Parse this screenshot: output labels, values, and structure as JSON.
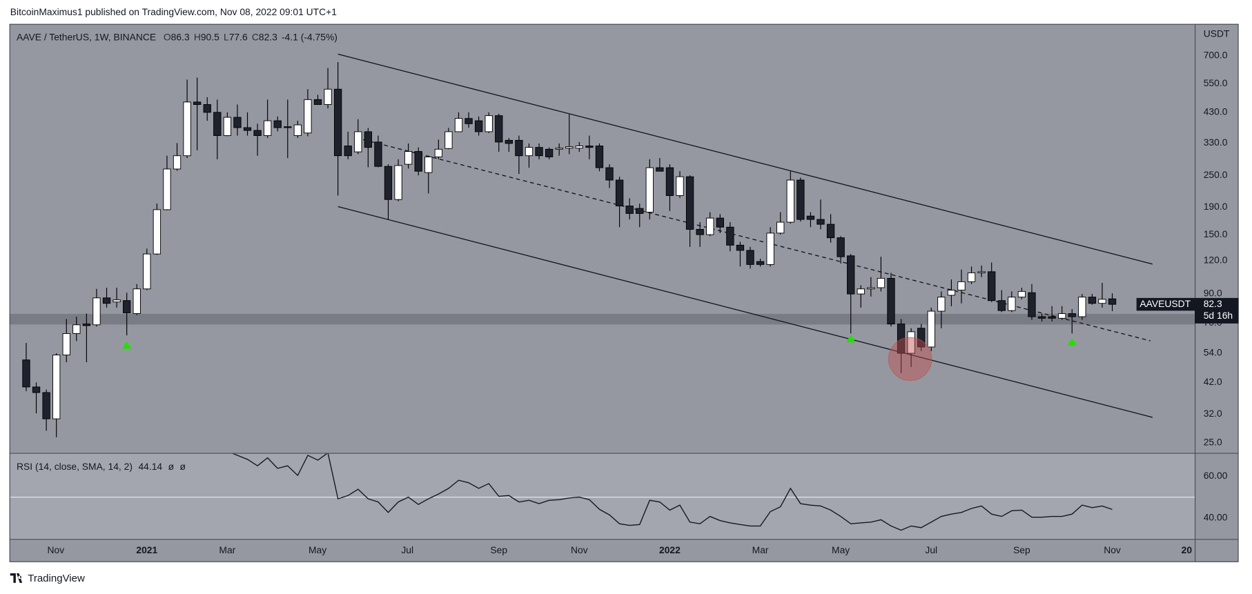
{
  "header": {
    "byline": "BitcoinMaximus1 published on TradingView.com, Nov 08, 2022 09:01 UTC+1"
  },
  "chart_data": {
    "type": "candlestick",
    "symbol_line": "AAVE / TetherUS, 1W, BINANCE",
    "ohlc_labels": [
      "O",
      "H",
      "L",
      "C"
    ],
    "change": "-4.1 (-4.75%)",
    "y_axis_label": "USDT",
    "y_scale": "log",
    "ylim": [
      22.9,
      921
    ],
    "yticks": [
      {
        "value": 700,
        "label": "700.0"
      },
      {
        "value": 550,
        "label": "550.0"
      },
      {
        "value": 430,
        "label": "430.0"
      },
      {
        "value": 330,
        "label": "330.0"
      },
      {
        "value": 250,
        "label": "250.0"
      },
      {
        "value": 190,
        "label": "190.0"
      },
      {
        "value": 150,
        "label": "150.0"
      },
      {
        "value": 120,
        "label": "120.0"
      },
      {
        "value": 90,
        "label": "90.0"
      },
      {
        "value": 70,
        "label": "70.0"
      },
      {
        "value": 54,
        "label": "54.0"
      },
      {
        "value": 42,
        "label": "42.0"
      },
      {
        "value": 32,
        "label": "32.0"
      },
      {
        "value": 25,
        "label": "25.0"
      }
    ],
    "xlim": [
      -1.67,
      116.2
    ],
    "xticks": [
      {
        "value": 2.94,
        "label": "Nov"
      },
      {
        "value": 12.0,
        "label": "2021"
      },
      {
        "value": 20.0,
        "label": "Mar"
      },
      {
        "value": 28.97,
        "label": "May"
      },
      {
        "value": 37.9,
        "label": "Jul"
      },
      {
        "value": 47.0,
        "label": "Sep"
      },
      {
        "value": 55.0,
        "label": "Nov"
      },
      {
        "value": 64.0,
        "label": "2022"
      },
      {
        "value": 73.0,
        "label": "Mar"
      },
      {
        "value": 81.0,
        "label": "May"
      },
      {
        "value": 90.0,
        "label": "Jul"
      },
      {
        "value": 99.0,
        "label": "Sep"
      },
      {
        "value": 108.0,
        "label": "Nov"
      },
      {
        "value": 115.4,
        "label": "20"
      }
    ],
    "up_color": "#ffffff",
    "down_color": "#1e222d",
    "candles": [
      [
        51,
        59,
        39,
        40.4
      ],
      [
        40.4,
        42,
        32.2,
        38.5
      ],
      [
        38.5,
        39.5,
        27.7,
        30.7
      ],
      [
        30.7,
        54,
        26.2,
        53.2
      ],
      [
        53.2,
        72.5,
        50,
        64
      ],
      [
        64,
        74,
        60,
        69
      ],
      [
        69.5,
        76,
        50,
        68.5
      ],
      [
        69,
        94,
        68,
        87
      ],
      [
        87,
        95,
        80,
        83
      ],
      [
        84,
        95,
        80,
        85.5
      ],
      [
        85,
        91,
        63,
        76.5
      ],
      [
        76,
        98,
        75,
        94
      ],
      [
        94,
        133,
        93,
        127
      ],
      [
        127,
        196,
        126,
        186
      ],
      [
        186,
        296,
        185,
        264
      ],
      [
        264,
        330,
        260,
        296
      ],
      [
        296,
        570,
        290,
        470
      ],
      [
        470,
        580,
        310,
        460
      ],
      [
        460,
        490,
        400,
        430
      ],
      [
        430,
        480,
        287,
        352
      ],
      [
        352,
        430,
        350,
        412
      ],
      [
        412,
        460,
        352,
        377
      ],
      [
        377,
        430,
        352,
        368
      ],
      [
        368,
        390,
        296,
        352
      ],
      [
        352,
        480,
        345,
        400
      ],
      [
        400,
        415,
        365,
        377
      ],
      [
        380,
        480,
        290,
        377
      ],
      [
        352,
        400,
        345,
        386
      ],
      [
        360,
        525,
        350,
        480
      ],
      [
        480,
        500,
        460,
        460
      ],
      [
        460,
        630,
        445,
        525
      ],
      [
        525,
        663,
        210,
        296
      ],
      [
        322,
        364,
        287,
        296
      ],
      [
        306,
        405,
        300,
        364
      ],
      [
        364,
        376,
        268,
        318
      ],
      [
        333,
        352,
        268,
        270
      ],
      [
        270,
        275,
        171,
        203
      ],
      [
        203,
        287,
        200,
        272
      ],
      [
        275,
        329,
        265,
        307
      ],
      [
        307,
        318,
        250,
        259
      ],
      [
        256,
        296,
        214,
        293
      ],
      [
        293,
        340,
        287,
        313
      ],
      [
        315,
        376,
        313,
        364
      ],
      [
        364,
        430,
        364,
        408
      ],
      [
        408,
        430,
        377,
        390
      ],
      [
        400,
        415,
        352,
        364
      ],
      [
        364,
        430,
        360,
        418
      ],
      [
        418,
        425,
        306,
        333
      ],
      [
        338,
        345,
        306,
        329
      ],
      [
        338,
        352,
        253,
        296
      ],
      [
        296,
        329,
        267,
        318
      ],
      [
        318,
        329,
        287,
        296
      ],
      [
        313,
        318,
        287,
        293
      ],
      [
        313,
        329,
        296,
        316
      ],
      [
        316,
        423,
        300,
        320
      ],
      [
        316,
        333,
        306,
        322
      ],
      [
        322,
        352,
        287,
        318
      ],
      [
        322,
        329,
        259,
        267
      ],
      [
        267,
        275,
        224,
        240
      ],
      [
        240,
        247,
        160,
        192
      ],
      [
        192,
        205,
        171,
        180
      ],
      [
        188,
        196,
        160,
        180
      ],
      [
        182,
        287,
        171,
        267
      ],
      [
        267,
        290,
        259,
        259
      ],
      [
        267,
        275,
        184,
        210
      ],
      [
        210,
        259,
        206,
        247
      ],
      [
        247,
        250,
        135,
        157
      ],
      [
        157,
        167,
        135,
        150
      ],
      [
        150,
        182,
        148,
        173
      ],
      [
        173,
        179,
        152,
        160
      ],
      [
        160,
        167,
        130,
        137
      ],
      [
        137,
        141,
        114,
        131
      ],
      [
        131,
        135,
        112,
        116
      ],
      [
        119,
        122,
        114,
        116
      ],
      [
        116,
        160,
        114,
        152
      ],
      [
        152,
        182,
        150,
        167
      ],
      [
        167,
        259,
        165,
        240
      ],
      [
        240,
        245,
        168,
        171
      ],
      [
        176,
        182,
        160,
        171
      ],
      [
        171,
        203,
        157,
        164
      ],
      [
        164,
        179,
        140,
        146
      ],
      [
        146,
        148,
        117,
        124
      ],
      [
        125,
        127,
        64,
        90
      ],
      [
        90,
        97,
        80,
        94
      ],
      [
        94,
        104,
        88,
        95
      ],
      [
        95,
        124,
        92,
        103
      ],
      [
        103,
        108,
        68,
        69.5
      ],
      [
        69.5,
        72.5,
        45.5,
        54
      ],
      [
        54,
        67,
        48,
        65
      ],
      [
        67,
        69.5,
        55,
        57
      ],
      [
        57,
        80,
        55,
        77.6
      ],
      [
        77.6,
        92,
        67,
        87.6
      ],
      [
        89,
        102,
        81,
        93
      ],
      [
        93,
        111,
        83,
        100
      ],
      [
        100,
        114,
        98,
        108
      ],
      [
        108,
        115,
        104,
        109
      ],
      [
        109,
        118,
        84,
        85
      ],
      [
        85,
        93,
        77,
        78
      ],
      [
        78,
        92,
        77,
        87.6
      ],
      [
        87.6,
        95,
        86,
        92
      ],
      [
        91,
        98,
        72,
        74
      ],
      [
        74,
        76,
        71,
        73
      ],
      [
        74,
        81,
        71,
        73
      ],
      [
        73,
        81,
        72,
        76
      ],
      [
        76,
        79,
        64,
        74
      ],
      [
        74,
        90,
        72,
        87.6
      ],
      [
        87.6,
        90,
        82,
        83
      ],
      [
        83,
        99,
        80,
        86
      ],
      [
        86.3,
        90.5,
        77.6,
        82.3
      ]
    ],
    "trendlines": [
      {
        "x": [
          31,
          112
        ],
        "y": [
          710,
          116.4
        ],
        "dashed": false
      },
      {
        "x": [
          31,
          112
        ],
        "y": [
          191,
          31.1
        ],
        "dashed": false
      },
      {
        "x": [
          33.5,
          111.8
        ],
        "y": [
          340,
          60.1
        ],
        "dashed": true
      }
    ],
    "zone": [
      69.4,
      75.6
    ],
    "markers": {
      "color": "#22e000",
      "points": [
        {
          "x": 10,
          "y": 57.7
        },
        {
          "x": 82,
          "y": 61
        },
        {
          "x": 104,
          "y": 59.3
        }
      ]
    },
    "highlight": {
      "x": 87.9,
      "y": 51.4,
      "color": "#c0504d"
    },
    "last_price": {
      "symbol": "AAVEUSDT",
      "countdown": "5d 16h"
    },
    "rsi": {
      "title": "RSI (14, close, SMA, 14, 2)",
      "extras": [
        "ø",
        "ø"
      ],
      "ylim": [
        30,
        70.8
      ],
      "yticks": [
        {
          "value": 60,
          "label": "60.00"
        },
        {
          "value": 40,
          "label": "40.00"
        }
      ],
      "midline": 50,
      "values": [
        null,
        null,
        null,
        null,
        null,
        null,
        null,
        null,
        null,
        null,
        null,
        null,
        null,
        null,
        null,
        null,
        null,
        null,
        null,
        null,
        72.0,
        70.0,
        68.1,
        65.0,
        68.8,
        63.8,
        65.0,
        60.4,
        70.0,
        67.7,
        71.2,
        49.2,
        50.8,
        53.8,
        49.2,
        47.7,
        42.7,
        47.7,
        50.0,
        46.5,
        49.2,
        51.5,
        54.2,
        58.1,
        56.9,
        54.2,
        56.5,
        50.4,
        50.8,
        47.7,
        48.5,
        46.9,
        48.5,
        48.8,
        49.6,
        50.0,
        48.8,
        44.2,
        41.5,
        37.3,
        36.5,
        36.9,
        48.5,
        47.7,
        43.8,
        46.2,
        38.1,
        37.3,
        40.8,
        38.8,
        37.7,
        36.9,
        36.2,
        36.2,
        43.1,
        45.4,
        54.2,
        46.9,
        46.2,
        45.8,
        43.8,
        40.8,
        37.3,
        37.7,
        38.1,
        39.2,
        36.2,
        34.2,
        36.2,
        35.4,
        38.1,
        40.8,
        41.9,
        42.7,
        44.6,
        45.8,
        41.9,
        40.8,
        43.5,
        43.8,
        40.4,
        40.4,
        40.8,
        40.8,
        41.9,
        46.2,
        45.0,
        45.8,
        44.14
      ]
    }
  },
  "footer": {
    "brand": "TradingView"
  }
}
